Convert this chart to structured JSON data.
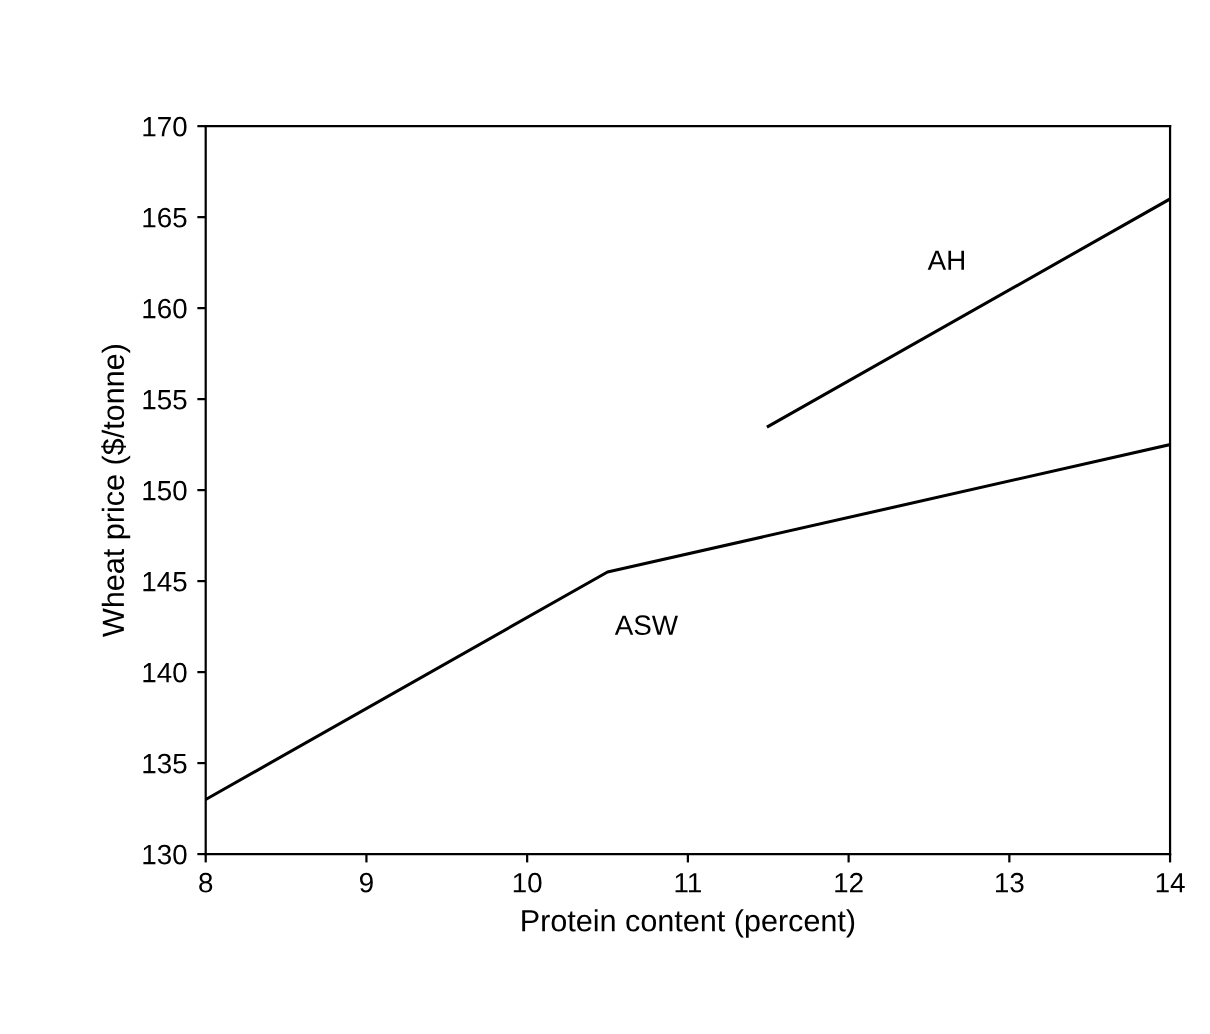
{
  "chart_data": {
    "type": "line",
    "xlabel": "Protein content (percent)",
    "ylabel": "Wheat price ($/tonne)",
    "xlim": [
      8,
      14
    ],
    "xticks": [
      8,
      9,
      10,
      11,
      12,
      13,
      14
    ],
    "ylim": [
      130,
      170
    ],
    "yticks": [
      130,
      135,
      140,
      145,
      150,
      155,
      160,
      165,
      170
    ],
    "grid": false,
    "legend": false,
    "marker": "none",
    "line_style": "solid",
    "series": [
      {
        "name": "ASW",
        "color": "#000000",
        "x": [
          8,
          10.5,
          14
        ],
        "values": [
          133,
          145.5,
          152.5
        ]
      },
      {
        "name": "AH",
        "color": "#000000",
        "x": [
          11.5,
          14
        ],
        "values": [
          153.5,
          166
        ]
      }
    ]
  }
}
